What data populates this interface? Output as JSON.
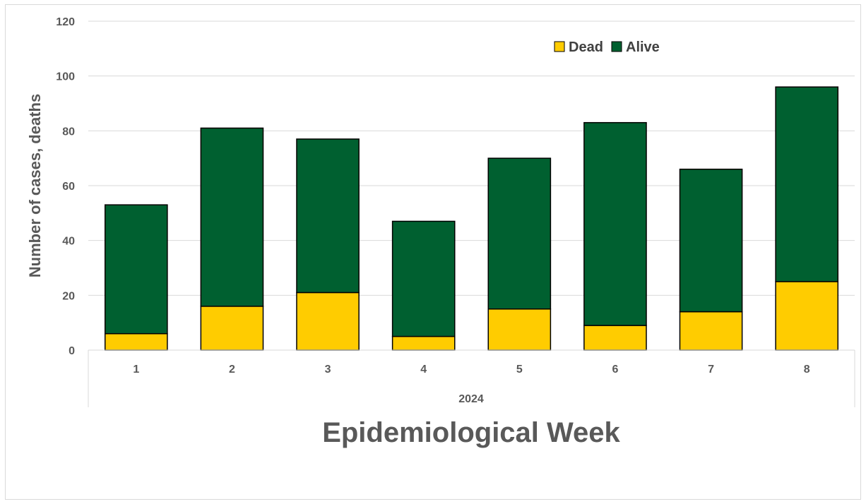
{
  "chart_data": {
    "type": "bar",
    "stacked": true,
    "categories": [
      "1",
      "2",
      "3",
      "4",
      "5",
      "6",
      "7",
      "8"
    ],
    "group_label": "2024",
    "series": [
      {
        "name": "Dead",
        "color": "#FFCC00",
        "values": [
          6,
          16,
          21,
          5,
          15,
          9,
          14,
          25
        ]
      },
      {
        "name": "Alive",
        "color": "#006030",
        "values": [
          47,
          65,
          56,
          42,
          55,
          74,
          52,
          71
        ]
      }
    ],
    "xlabel": "Epidemiological Week",
    "ylabel": "Number of cases, deaths",
    "ylim": [
      0,
      120
    ],
    "yticks": [
      "0",
      "20",
      "40",
      "60",
      "80",
      "100",
      "120"
    ],
    "grid": true,
    "legend_position": "top-right"
  }
}
